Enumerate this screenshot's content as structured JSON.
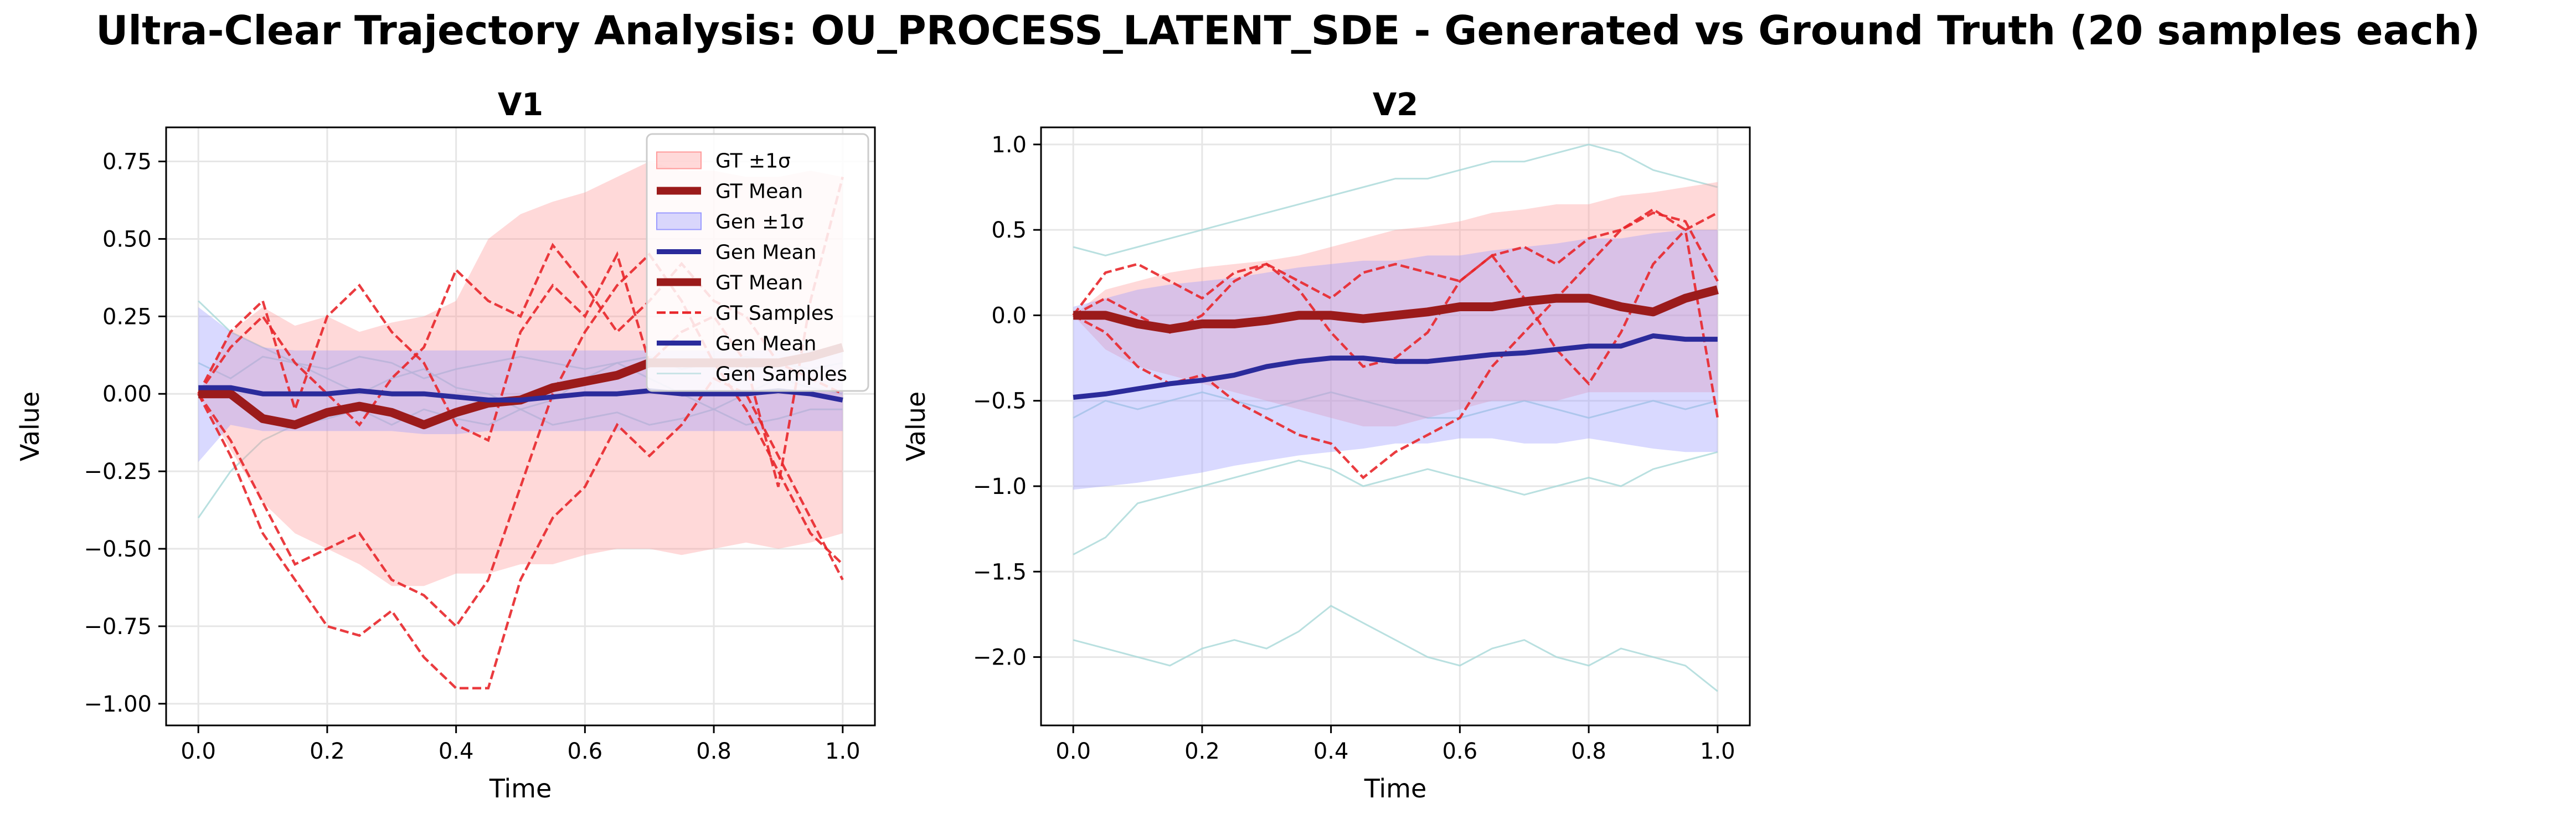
{
  "figure": {
    "suptitle": "Ultra-Clear Trajectory Analysis: OU_PROCESS_LATENT_SDE - Generated vs Ground Truth (20 samples each)"
  },
  "colors": {
    "gt_band": "#ff9a9a",
    "gt_mean": "#9b1b1b",
    "gen_band": "#9a9aff",
    "gen_mean": "#2b2b9b",
    "gt_samples": "#e8262a",
    "gen_samples": "#a8d8d8",
    "grid": "#e6e6e6"
  },
  "legend": {
    "entries": [
      {
        "label": "GT ±1σ",
        "kind": "patch",
        "color": "gt_band"
      },
      {
        "label": "GT Mean",
        "kind": "thick",
        "color": "gt_mean"
      },
      {
        "label": "Gen ±1σ",
        "kind": "patch",
        "color": "gen_band"
      },
      {
        "label": "Gen Mean",
        "kind": "line",
        "color": "gen_mean"
      },
      {
        "label": "GT Mean",
        "kind": "thick",
        "color": "gt_mean"
      },
      {
        "label": "GT Samples",
        "kind": "dashed",
        "color": "gt_samples"
      },
      {
        "label": "Gen Mean",
        "kind": "line",
        "color": "gen_mean"
      },
      {
        "label": "Gen Samples",
        "kind": "faint",
        "color": "gen_samples"
      }
    ]
  },
  "chart_data": [
    {
      "type": "line",
      "title": "V1",
      "xlabel": "Time",
      "ylabel": "Value",
      "xlim": [
        -0.05,
        1.05
      ],
      "ylim": [
        -1.07,
        0.86
      ],
      "xticks": [
        0.0,
        0.2,
        0.4,
        0.6,
        0.8,
        1.0
      ],
      "xtick_labels": [
        "0.0",
        "0.2",
        "0.4",
        "0.6",
        "0.8",
        "1.0"
      ],
      "yticks": [
        -1.0,
        -0.75,
        -0.5,
        -0.25,
        0.0,
        0.25,
        0.5,
        0.75
      ],
      "ytick_labels": [
        "−1.00",
        "−0.75",
        "−0.50",
        "−0.25",
        "0.00",
        "0.25",
        "0.50",
        "0.75"
      ],
      "grid": true,
      "legend_position": "upper right",
      "x": [
        0.0,
        0.05,
        0.1,
        0.15,
        0.2,
        0.25,
        0.3,
        0.35,
        0.4,
        0.45,
        0.5,
        0.55,
        0.6,
        0.65,
        0.7,
        0.75,
        0.8,
        0.85,
        0.9,
        0.95,
        1.0
      ],
      "series": [
        {
          "name": "GT ±1σ",
          "kind": "band",
          "color": "gt_band",
          "lower": [
            0.0,
            -0.18,
            -0.35,
            -0.45,
            -0.5,
            -0.55,
            -0.62,
            -0.62,
            -0.58,
            -0.58,
            -0.55,
            -0.55,
            -0.52,
            -0.5,
            -0.5,
            -0.52,
            -0.5,
            -0.48,
            -0.5,
            -0.48,
            -0.45
          ],
          "upper": [
            0.0,
            0.2,
            0.28,
            0.22,
            0.25,
            0.2,
            0.23,
            0.25,
            0.3,
            0.5,
            0.58,
            0.62,
            0.65,
            0.7,
            0.75,
            0.72,
            0.72,
            0.7,
            0.7,
            0.72,
            0.7
          ]
        },
        {
          "name": "Gen ±1σ",
          "kind": "band",
          "color": "gen_band",
          "lower": [
            -0.22,
            -0.1,
            -0.12,
            -0.12,
            -0.12,
            -0.12,
            -0.12,
            -0.13,
            -0.13,
            -0.12,
            -0.12,
            -0.12,
            -0.12,
            -0.12,
            -0.12,
            -0.12,
            -0.12,
            -0.12,
            -0.12,
            -0.12,
            -0.12
          ],
          "upper": [
            0.28,
            0.2,
            0.15,
            0.14,
            0.14,
            0.14,
            0.14,
            0.14,
            0.14,
            0.14,
            0.14,
            0.14,
            0.14,
            0.14,
            0.14,
            0.14,
            0.14,
            0.14,
            0.14,
            0.14,
            0.14
          ]
        },
        {
          "name": "GT Mean",
          "kind": "mean",
          "color": "gt_mean",
          "values": [
            0.0,
            0.0,
            -0.08,
            -0.1,
            -0.06,
            -0.04,
            -0.06,
            -0.1,
            -0.06,
            -0.03,
            -0.02,
            0.02,
            0.04,
            0.06,
            0.1,
            0.1,
            0.1,
            0.1,
            0.1,
            0.12,
            0.15
          ]
        },
        {
          "name": "Gen Mean",
          "kind": "mean-gen",
          "color": "gen_mean",
          "values": [
            0.02,
            0.02,
            0.0,
            0.0,
            0.0,
            0.01,
            0.0,
            0.0,
            -0.01,
            -0.02,
            -0.02,
            -0.01,
            0.0,
            0.0,
            0.01,
            0.0,
            0.0,
            0.0,
            0.01,
            0.0,
            -0.02
          ]
        },
        {
          "name": "GT Samples",
          "kind": "sample",
          "color": "gt_samples",
          "values": [
            0.0,
            0.2,
            0.3,
            -0.05,
            0.25,
            0.35,
            0.2,
            0.1,
            -0.1,
            -0.15,
            0.2,
            0.35,
            0.25,
            0.45,
            0.1,
            0.2,
            0.25,
            0.1,
            -0.3,
            0.3,
            0.7
          ]
        },
        {
          "name": "GT Samples",
          "kind": "sample",
          "color": "gt_samples",
          "values": [
            0.0,
            -0.2,
            -0.45,
            -0.6,
            -0.75,
            -0.78,
            -0.7,
            -0.85,
            -0.95,
            -0.95,
            -0.6,
            -0.4,
            -0.3,
            -0.1,
            -0.2,
            -0.1,
            0.05,
            0.0,
            -0.2,
            -0.4,
            -0.6
          ]
        },
        {
          "name": "GT Samples",
          "kind": "sample",
          "color": "gt_samples",
          "values": [
            0.0,
            -0.15,
            -0.35,
            -0.55,
            -0.5,
            -0.45,
            -0.6,
            -0.65,
            -0.75,
            -0.6,
            -0.3,
            0.0,
            0.2,
            0.35,
            0.45,
            0.3,
            0.1,
            -0.05,
            -0.25,
            -0.45,
            -0.55
          ]
        },
        {
          "name": "GT Samples",
          "kind": "sample",
          "color": "gt_samples",
          "values": [
            0.0,
            0.15,
            0.25,
            0.1,
            0.0,
            -0.1,
            0.05,
            0.15,
            0.4,
            0.3,
            0.25,
            0.48,
            0.35,
            0.2,
            0.3,
            0.42,
            0.3,
            0.25,
            0.1,
            0.05,
            0.0
          ]
        },
        {
          "name": "Gen Samples",
          "kind": "faint",
          "color": "gen_samples",
          "values": [
            0.3,
            0.2,
            0.15,
            0.1,
            0.05,
            0.0,
            0.05,
            0.08,
            0.02,
            0.0,
            -0.05,
            -0.02,
            0.05,
            0.1,
            0.05,
            0.0,
            -0.05,
            0.0,
            0.05,
            0.02,
            0.0
          ]
        },
        {
          "name": "Gen Samples",
          "kind": "faint",
          "color": "gen_samples",
          "values": [
            -0.4,
            -0.25,
            -0.15,
            -0.1,
            -0.08,
            -0.05,
            -0.1,
            -0.05,
            -0.08,
            -0.1,
            -0.05,
            -0.1,
            -0.08,
            -0.06,
            -0.1,
            -0.08,
            -0.05,
            -0.1,
            -0.08,
            -0.05,
            -0.05
          ]
        },
        {
          "name": "Gen Samples",
          "kind": "faint",
          "color": "gen_samples",
          "values": [
            0.1,
            0.05,
            0.12,
            0.1,
            0.08,
            0.12,
            0.1,
            0.05,
            0.08,
            0.1,
            0.12,
            0.1,
            0.08,
            0.1,
            0.12,
            0.08,
            0.1,
            0.12,
            0.1,
            0.08,
            0.1
          ]
        }
      ]
    },
    {
      "type": "line",
      "title": "V2",
      "xlabel": "Time",
      "ylabel": "Value",
      "xlim": [
        -0.05,
        1.05
      ],
      "ylim": [
        -2.4,
        1.1
      ],
      "xticks": [
        0.0,
        0.2,
        0.4,
        0.6,
        0.8,
        1.0
      ],
      "xtick_labels": [
        "0.0",
        "0.2",
        "0.4",
        "0.6",
        "0.8",
        "1.0"
      ],
      "yticks": [
        -2.0,
        -1.5,
        -1.0,
        -0.5,
        0.0,
        0.5,
        1.0
      ],
      "ytick_labels": [
        "−2.0",
        "−1.5",
        "−1.0",
        "−0.5",
        "0.0",
        "0.5",
        "1.0"
      ],
      "grid": true,
      "x": [
        0.0,
        0.05,
        0.1,
        0.15,
        0.2,
        0.25,
        0.3,
        0.35,
        0.4,
        0.45,
        0.5,
        0.55,
        0.6,
        0.65,
        0.7,
        0.75,
        0.8,
        0.85,
        0.9,
        0.95,
        1.0
      ],
      "series": [
        {
          "name": "GT ±1σ",
          "kind": "band",
          "color": "gt_band",
          "lower": [
            0.0,
            -0.2,
            -0.3,
            -0.35,
            -0.4,
            -0.45,
            -0.5,
            -0.55,
            -0.6,
            -0.65,
            -0.65,
            -0.6,
            -0.55,
            -0.5,
            -0.5,
            -0.5,
            -0.45,
            -0.45,
            -0.45,
            -0.45,
            -0.45
          ],
          "upper": [
            0.0,
            0.15,
            0.2,
            0.25,
            0.28,
            0.3,
            0.32,
            0.35,
            0.4,
            0.45,
            0.5,
            0.52,
            0.55,
            0.6,
            0.62,
            0.65,
            0.65,
            0.7,
            0.72,
            0.75,
            0.78
          ]
        },
        {
          "name": "Gen ±1σ",
          "kind": "band",
          "color": "gen_band",
          "lower": [
            -1.02,
            -1.0,
            -0.98,
            -0.95,
            -0.92,
            -0.88,
            -0.85,
            -0.82,
            -0.8,
            -0.78,
            -0.75,
            -0.75,
            -0.72,
            -0.72,
            -0.75,
            -0.75,
            -0.72,
            -0.75,
            -0.78,
            -0.8,
            -0.8
          ],
          "upper": [
            0.05,
            0.1,
            0.15,
            0.18,
            0.2,
            0.22,
            0.25,
            0.28,
            0.3,
            0.32,
            0.32,
            0.35,
            0.35,
            0.38,
            0.4,
            0.42,
            0.45,
            0.45,
            0.48,
            0.5,
            0.5
          ]
        },
        {
          "name": "GT Mean",
          "kind": "mean",
          "color": "gt_mean",
          "values": [
            0.0,
            0.0,
            -0.05,
            -0.08,
            -0.05,
            -0.05,
            -0.03,
            0.0,
            0.0,
            -0.02,
            0.0,
            0.02,
            0.05,
            0.05,
            0.08,
            0.1,
            0.1,
            0.05,
            0.02,
            0.1,
            0.15
          ]
        },
        {
          "name": "Gen Mean",
          "kind": "mean-gen",
          "color": "gen_mean",
          "values": [
            -0.48,
            -0.46,
            -0.43,
            -0.4,
            -0.38,
            -0.35,
            -0.3,
            -0.27,
            -0.25,
            -0.25,
            -0.27,
            -0.27,
            -0.25,
            -0.23,
            -0.22,
            -0.2,
            -0.18,
            -0.18,
            -0.12,
            -0.14,
            -0.14
          ]
        },
        {
          "name": "GT Samples",
          "kind": "sample",
          "color": "gt_samples",
          "values": [
            0.0,
            0.25,
            0.3,
            0.2,
            0.1,
            0.25,
            0.3,
            0.15,
            -0.1,
            -0.3,
            -0.25,
            -0.1,
            0.2,
            0.35,
            0.4,
            0.3,
            0.45,
            0.5,
            0.6,
            0.55,
            0.2
          ]
        },
        {
          "name": "GT Samples",
          "kind": "sample",
          "color": "gt_samples",
          "values": [
            0.0,
            -0.1,
            -0.3,
            -0.4,
            -0.35,
            -0.5,
            -0.6,
            -0.7,
            -0.75,
            -0.95,
            -0.8,
            -0.7,
            -0.6,
            -0.3,
            -0.1,
            0.1,
            0.3,
            0.5,
            0.62,
            0.5,
            -0.6
          ]
        },
        {
          "name": "GT Samples",
          "kind": "sample",
          "color": "gt_samples",
          "values": [
            0.0,
            0.1,
            0.0,
            -0.1,
            0.0,
            0.2,
            0.3,
            0.2,
            0.1,
            0.25,
            0.3,
            0.25,
            0.2,
            0.35,
            0.1,
            -0.2,
            -0.4,
            -0.1,
            0.3,
            0.5,
            0.6
          ]
        },
        {
          "name": "Gen Samples",
          "kind": "faint",
          "color": "gen_samples",
          "values": [
            -1.9,
            -1.95,
            -2.0,
            -2.05,
            -1.95,
            -1.9,
            -1.95,
            -1.85,
            -1.7,
            -1.8,
            -1.9,
            -2.0,
            -2.05,
            -1.95,
            -1.9,
            -2.0,
            -2.05,
            -1.95,
            -2.0,
            -2.05,
            -2.2
          ]
        },
        {
          "name": "Gen Samples",
          "kind": "faint",
          "color": "gen_samples",
          "values": [
            -1.4,
            -1.3,
            -1.1,
            -1.05,
            -1.0,
            -0.95,
            -0.9,
            -0.85,
            -0.9,
            -1.0,
            -0.95,
            -0.9,
            -0.95,
            -1.0,
            -1.05,
            -1.0,
            -0.95,
            -1.0,
            -0.9,
            -0.85,
            -0.8
          ]
        },
        {
          "name": "Gen Samples",
          "kind": "faint",
          "color": "gen_samples",
          "values": [
            0.4,
            0.35,
            0.4,
            0.45,
            0.5,
            0.55,
            0.6,
            0.65,
            0.7,
            0.75,
            0.8,
            0.8,
            0.85,
            0.9,
            0.9,
            0.95,
            1.0,
            0.95,
            0.85,
            0.8,
            0.75
          ]
        },
        {
          "name": "Gen Samples",
          "kind": "faint",
          "color": "gen_samples",
          "values": [
            -0.6,
            -0.5,
            -0.55,
            -0.5,
            -0.45,
            -0.5,
            -0.55,
            -0.5,
            -0.45,
            -0.5,
            -0.55,
            -0.6,
            -0.6,
            -0.55,
            -0.5,
            -0.55,
            -0.6,
            -0.55,
            -0.5,
            -0.55,
            -0.5
          ]
        }
      ]
    }
  ]
}
